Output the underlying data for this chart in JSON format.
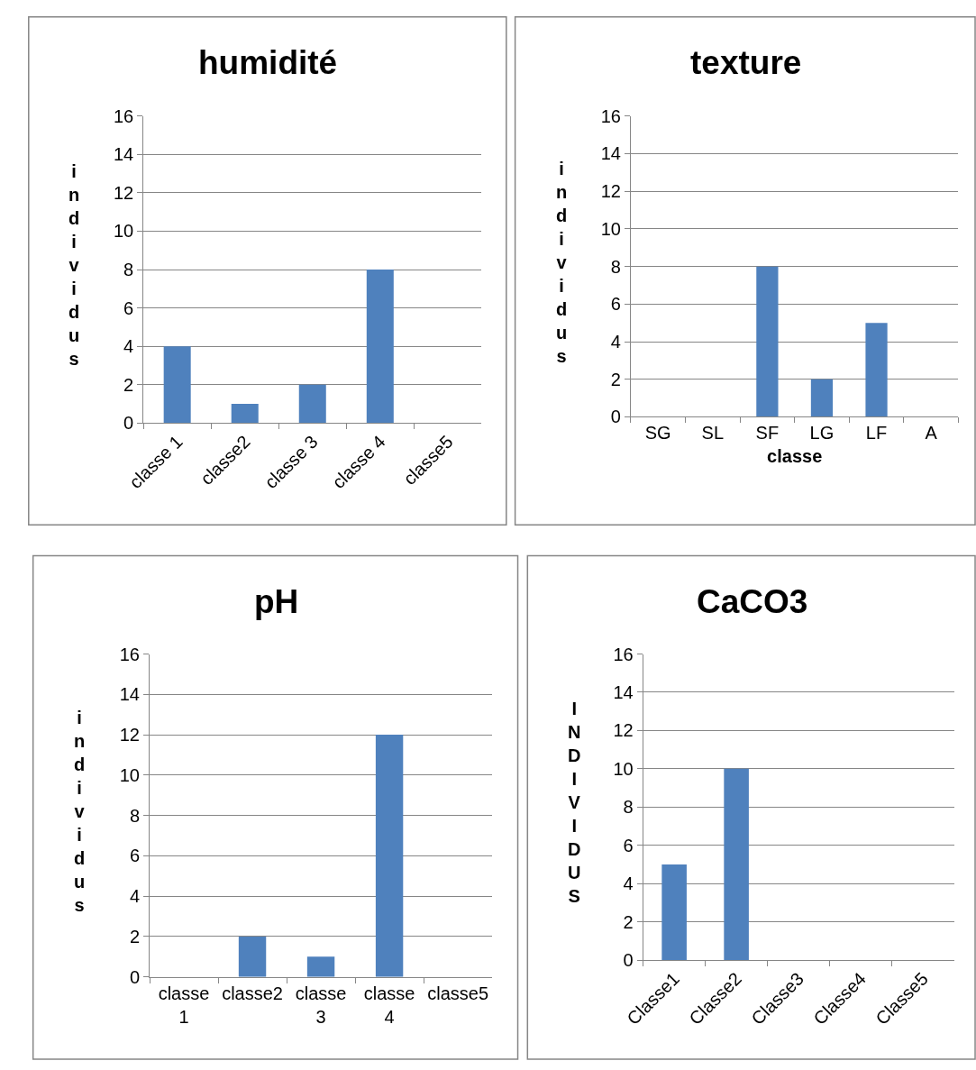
{
  "chart_data": [
    {
      "type": "bar",
      "title": "humidité",
      "ylabel": "individus",
      "categories": [
        "classe 1",
        "classe2",
        "classe 3",
        "classe 4",
        "classe5"
      ],
      "values": [
        4,
        1,
        2,
        8,
        0
      ],
      "color": "#4f81bd",
      "ylim": [
        0,
        16
      ],
      "yticks": [
        0,
        2,
        4,
        6,
        8,
        10,
        12,
        14,
        16
      ],
      "grid": "y"
    },
    {
      "type": "bar",
      "title": "texture",
      "ylabel": "individus",
      "xlabel": "classe",
      "categories": [
        "SG",
        "SL",
        "SF",
        "LG",
        "LF",
        "A"
      ],
      "values": [
        0,
        0,
        8,
        2,
        5,
        0
      ],
      "color": "#4f81bd",
      "ylim": [
        0,
        16
      ],
      "yticks": [
        0,
        2,
        4,
        6,
        8,
        10,
        12,
        14,
        16
      ],
      "grid": "y"
    },
    {
      "type": "bar",
      "title": "pH",
      "ylabel": "individus",
      "categories": [
        "classe 1",
        "classe2",
        "classe 3",
        "classe 4",
        "classe5"
      ],
      "values": [
        0,
        2,
        1,
        12,
        0
      ],
      "color": "#4f81bd",
      "ylim": [
        0,
        16
      ],
      "yticks": [
        0,
        2,
        4,
        6,
        8,
        10,
        12,
        14,
        16
      ],
      "grid": "y"
    },
    {
      "type": "bar",
      "title": "CaCO3",
      "ylabel": "INDIVIDUS",
      "categories": [
        "Classe1",
        "Classe2",
        "Classe3",
        "Classe4",
        "Classe5"
      ],
      "values": [
        5,
        10,
        0,
        0,
        0
      ],
      "color": "#4f81bd",
      "ylim": [
        0,
        16
      ],
      "yticks": [
        0,
        2,
        4,
        6,
        8,
        10,
        12,
        14,
        16
      ],
      "grid": "y"
    }
  ]
}
